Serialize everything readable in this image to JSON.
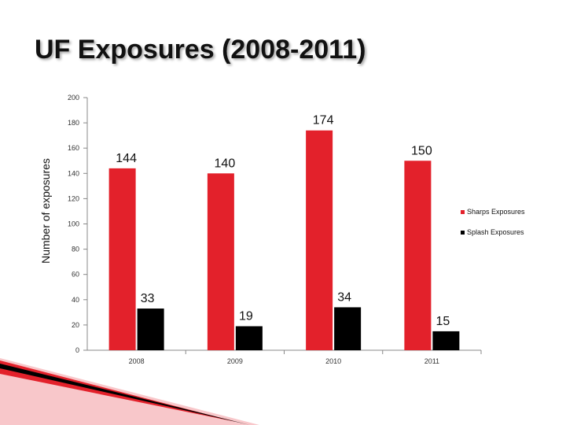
{
  "title": "UF Exposures (2008-2011)",
  "chart_data": {
    "type": "bar",
    "categories": [
      "2008",
      "2009",
      "2010",
      "2011"
    ],
    "series": [
      {
        "name": "Sharps Exposures",
        "values": [
          144,
          140,
          174,
          150
        ],
        "color": "#e3212b"
      },
      {
        "name": "Splash Exposures",
        "values": [
          33,
          19,
          34,
          15
        ],
        "color": "#000000"
      }
    ],
    "ylabel": "Number of exposures",
    "xlabel": "",
    "ylim": [
      0,
      200
    ],
    "yticks": [
      "0",
      "20",
      "40",
      "60",
      "80",
      "100",
      "120",
      "140",
      "160",
      "180",
      "200"
    ],
    "grid": false,
    "legend_position": "right"
  }
}
